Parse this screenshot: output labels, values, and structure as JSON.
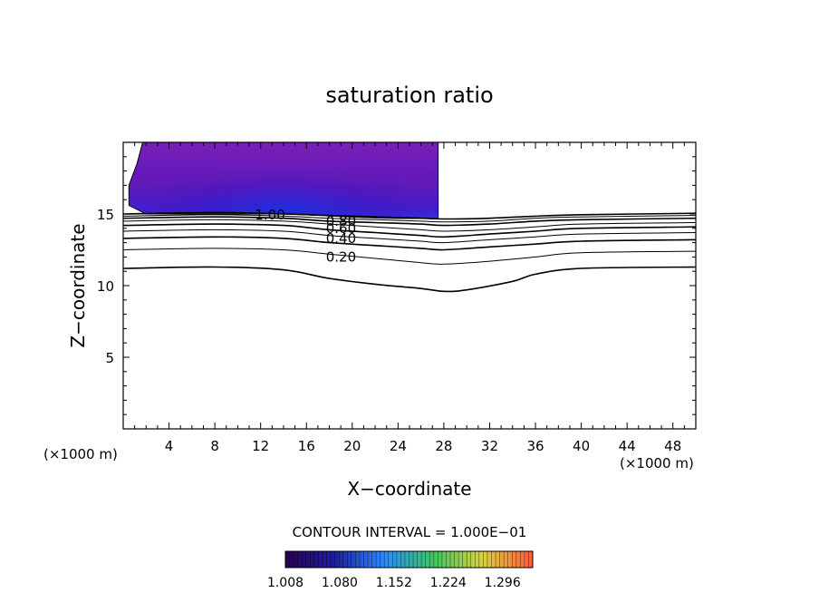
{
  "chart_data": {
    "type": "contour",
    "title": "saturation ratio",
    "xlabel": "X−coordinate",
    "ylabel": "Z−coordinate",
    "x_unit_label": "(×1000 m)",
    "y_unit_label": "(×1000 m)",
    "xlim": [
      0,
      50
    ],
    "ylim": [
      0,
      20
    ],
    "x_ticks": [
      4,
      8,
      12,
      16,
      20,
      24,
      28,
      32,
      36,
      40,
      44,
      48
    ],
    "y_ticks": [
      5,
      10,
      15
    ],
    "contour_interval_text": "CONTOUR INTERVAL = 1.000E−01",
    "colorbar": {
      "min": 1.008,
      "max": 1.336,
      "tick_labels": [
        "1.008",
        "1.080",
        "1.152",
        "1.224",
        "1.296"
      ],
      "tick_values": [
        1.008,
        1.08,
        1.152,
        1.224,
        1.296
      ],
      "colors": [
        "#2a0050",
        "#1e1ea0",
        "#2a8cff",
        "#3cc864",
        "#dcd23c",
        "#ff5a3c"
      ]
    },
    "shaded_region": {
      "x_range": [
        0.5,
        27.5
      ],
      "z_range": [
        14.7,
        20
      ],
      "value_range": [
        1.008,
        1.1
      ],
      "colors": [
        "#7a1fb8",
        "#6418b0",
        "#3a1fd0",
        "#1a30f0"
      ]
    },
    "contours": [
      {
        "level": 0.2,
        "label": "0.20",
        "points": [
          [
            0,
            11.2
          ],
          [
            8,
            11.3
          ],
          [
            14,
            11.1
          ],
          [
            18,
            10.5
          ],
          [
            22,
            10.1
          ],
          [
            26,
            9.8
          ],
          [
            28,
            9.6
          ],
          [
            30,
            9.7
          ],
          [
            34,
            10.3
          ],
          [
            36,
            10.8
          ],
          [
            40,
            11.2
          ],
          [
            50,
            11.3
          ]
        ]
      },
      {
        "level": 0.3,
        "label": "",
        "points": [
          [
            0,
            12.5
          ],
          [
            8,
            12.6
          ],
          [
            14,
            12.5
          ],
          [
            18,
            12.2
          ],
          [
            22,
            11.9
          ],
          [
            26,
            11.6
          ],
          [
            28,
            11.5
          ],
          [
            32,
            11.7
          ],
          [
            36,
            12.0
          ],
          [
            40,
            12.3
          ],
          [
            50,
            12.4
          ]
        ]
      },
      {
        "level": 0.4,
        "label": "0.40",
        "points": [
          [
            0,
            13.3
          ],
          [
            8,
            13.4
          ],
          [
            14,
            13.3
          ],
          [
            18,
            13.0
          ],
          [
            22,
            12.8
          ],
          [
            26,
            12.6
          ],
          [
            28,
            12.5
          ],
          [
            32,
            12.7
          ],
          [
            36,
            12.9
          ],
          [
            40,
            13.1
          ],
          [
            50,
            13.2
          ]
        ]
      },
      {
        "level": 0.5,
        "label": "",
        "points": [
          [
            0,
            13.8
          ],
          [
            8,
            13.9
          ],
          [
            14,
            13.8
          ],
          [
            18,
            13.5
          ],
          [
            22,
            13.3
          ],
          [
            26,
            13.1
          ],
          [
            28,
            13.0
          ],
          [
            32,
            13.2
          ],
          [
            36,
            13.4
          ],
          [
            40,
            13.6
          ],
          [
            50,
            13.7
          ]
        ]
      },
      {
        "level": 0.6,
        "label": "0.60",
        "points": [
          [
            0,
            14.2
          ],
          [
            8,
            14.3
          ],
          [
            14,
            14.2
          ],
          [
            18,
            13.9
          ],
          [
            22,
            13.7
          ],
          [
            26,
            13.5
          ],
          [
            28,
            13.4
          ],
          [
            32,
            13.6
          ],
          [
            36,
            13.8
          ],
          [
            40,
            14.0
          ],
          [
            50,
            14.1
          ]
        ]
      },
      {
        "level": 0.7,
        "label": "",
        "points": [
          [
            0,
            14.5
          ],
          [
            8,
            14.6
          ],
          [
            14,
            14.5
          ],
          [
            18,
            14.3
          ],
          [
            22,
            14.1
          ],
          [
            26,
            13.9
          ],
          [
            28,
            13.8
          ],
          [
            32,
            13.9
          ],
          [
            36,
            14.1
          ],
          [
            40,
            14.3
          ],
          [
            50,
            14.4
          ]
        ]
      },
      {
        "level": 0.8,
        "label": "0.80",
        "points": [
          [
            0,
            14.7
          ],
          [
            8,
            14.8
          ],
          [
            14,
            14.7
          ],
          [
            18,
            14.5
          ],
          [
            22,
            14.4
          ],
          [
            26,
            14.3
          ],
          [
            28,
            14.2
          ],
          [
            32,
            14.3
          ],
          [
            36,
            14.5
          ],
          [
            40,
            14.6
          ],
          [
            50,
            14.7
          ]
        ]
      },
      {
        "level": 0.9,
        "label": "",
        "points": [
          [
            0,
            14.85
          ],
          [
            8,
            14.95
          ],
          [
            14,
            14.85
          ],
          [
            18,
            14.7
          ],
          [
            22,
            14.6
          ],
          [
            26,
            14.5
          ],
          [
            28,
            14.45
          ],
          [
            32,
            14.5
          ],
          [
            36,
            14.7
          ],
          [
            40,
            14.8
          ],
          [
            50,
            14.9
          ]
        ]
      },
      {
        "level": 1.0,
        "label": "1.00",
        "points": [
          [
            0,
            15.0
          ],
          [
            8,
            15.1
          ],
          [
            14,
            15.0
          ],
          [
            18,
            14.9
          ],
          [
            22,
            14.8
          ],
          [
            26,
            14.7
          ],
          [
            28,
            14.65
          ],
          [
            32,
            14.7
          ],
          [
            36,
            14.85
          ],
          [
            40,
            14.95
          ],
          [
            50,
            15.05
          ]
        ]
      }
    ],
    "contour_labels": [
      {
        "label": "1.00",
        "at": [
          11.5,
          14.95
        ]
      },
      {
        "label": "0.80",
        "at": [
          17.7,
          14.5
        ]
      },
      {
        "label": "0.60",
        "at": [
          17.7,
          14.0
        ]
      },
      {
        "label": "0.40",
        "at": [
          17.7,
          13.3
        ]
      },
      {
        "label": "0.20",
        "at": [
          17.7,
          12.0
        ]
      }
    ]
  }
}
